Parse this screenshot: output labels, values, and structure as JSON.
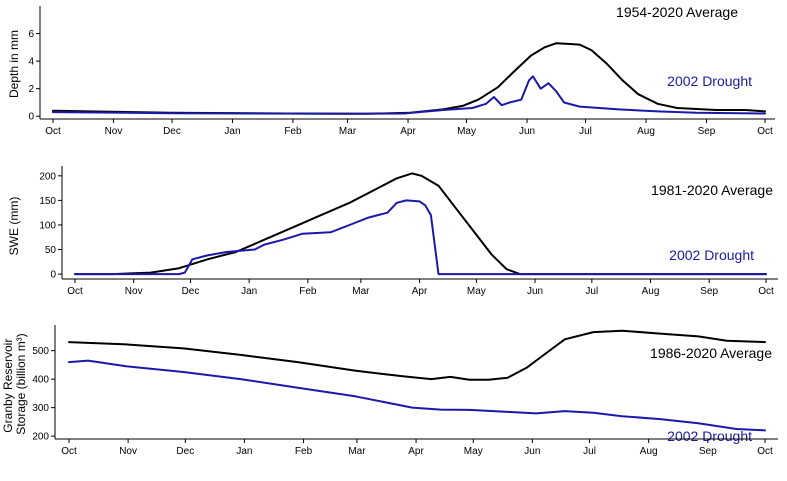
{
  "chart_data": [
    {
      "type": "line",
      "ylabel": "Depth in mm",
      "ylim": [
        -0.2,
        8
      ],
      "yticks": [
        0,
        2,
        4,
        6
      ],
      "xlim": [
        0,
        365
      ],
      "x_ticks": [
        {
          "day": 0,
          "label": "Oct"
        },
        {
          "day": 31,
          "label": "Nov"
        },
        {
          "day": 61,
          "label": "Dec"
        },
        {
          "day": 92,
          "label": "Jan"
        },
        {
          "day": 123,
          "label": "Feb"
        },
        {
          "day": 151,
          "label": "Mar"
        },
        {
          "day": 182,
          "label": "Apr"
        },
        {
          "day": 212,
          "label": "May"
        },
        {
          "day": 243,
          "label": "Jun"
        },
        {
          "day": 273,
          "label": "Jul"
        },
        {
          "day": 304,
          "label": "Aug"
        },
        {
          "day": 335,
          "label": "Sep"
        },
        {
          "day": 365,
          "label": "Oct"
        }
      ],
      "legend_position": "inline annotations",
      "series": [
        {
          "name": "1954-2020 Average",
          "color": "#000000",
          "points": [
            [
              0,
              0.4
            ],
            [
              30,
              0.33
            ],
            [
              60,
              0.25
            ],
            [
              120,
              0.2
            ],
            [
              160,
              0.18
            ],
            [
              183,
              0.25
            ],
            [
              200,
              0.5
            ],
            [
              210,
              0.75
            ],
            [
              218,
              1.2
            ],
            [
              228,
              2.1
            ],
            [
              236,
              3.2
            ],
            [
              245,
              4.4
            ],
            [
              252,
              5.0
            ],
            [
              258,
              5.3
            ],
            [
              264,
              5.25
            ],
            [
              270,
              5.2
            ],
            [
              276,
              4.8
            ],
            [
              284,
              3.8
            ],
            [
              292,
              2.6
            ],
            [
              300,
              1.6
            ],
            [
              310,
              0.9
            ],
            [
              320,
              0.6
            ],
            [
              340,
              0.45
            ],
            [
              355,
              0.45
            ],
            [
              365,
              0.35
            ]
          ]
        },
        {
          "name": "2002 Drought",
          "color": "#1a1aaa",
          "points": [
            [
              0,
              0.3
            ],
            [
              60,
              0.22
            ],
            [
              150,
              0.18
            ],
            [
              180,
              0.2
            ],
            [
              200,
              0.45
            ],
            [
              215,
              0.6
            ],
            [
              222,
              0.9
            ],
            [
              226,
              1.4
            ],
            [
              230,
              0.8
            ],
            [
              234,
              1.0
            ],
            [
              240,
              1.2
            ],
            [
              244,
              2.6
            ],
            [
              246,
              2.9
            ],
            [
              250,
              2.0
            ],
            [
              254,
              2.4
            ],
            [
              258,
              1.8
            ],
            [
              262,
              1.0
            ],
            [
              270,
              0.7
            ],
            [
              290,
              0.5
            ],
            [
              310,
              0.35
            ],
            [
              330,
              0.25
            ],
            [
              365,
              0.2
            ]
          ]
        }
      ],
      "annotations": [
        {
          "text": "1954-2020 Average",
          "color": "#000000"
        },
        {
          "text": "2002 Drought",
          "color": "#1a1aaa"
        }
      ]
    },
    {
      "type": "line",
      "ylabel": "SWE (mm)",
      "ylim": [
        -10,
        220
      ],
      "yticks": [
        0,
        50,
        100,
        150,
        200
      ],
      "xlim": [
        0,
        365
      ],
      "x_ticks": [
        {
          "day": 0,
          "label": "Oct"
        },
        {
          "day": 31,
          "label": "Nov"
        },
        {
          "day": 61,
          "label": "Dec"
        },
        {
          "day": 92,
          "label": "Jan"
        },
        {
          "day": 123,
          "label": "Feb"
        },
        {
          "day": 151,
          "label": "Mar"
        },
        {
          "day": 182,
          "label": "Apr"
        },
        {
          "day": 212,
          "label": "May"
        },
        {
          "day": 243,
          "label": "Jun"
        },
        {
          "day": 273,
          "label": "Jul"
        },
        {
          "day": 304,
          "label": "Aug"
        },
        {
          "day": 335,
          "label": "Sep"
        },
        {
          "day": 365,
          "label": "Oct"
        }
      ],
      "legend_position": "inline annotations",
      "series": [
        {
          "name": "1981-2020 Average",
          "color": "#000000",
          "points": [
            [
              0,
              0
            ],
            [
              20,
              0
            ],
            [
              40,
              3
            ],
            [
              55,
              12
            ],
            [
              70,
              30
            ],
            [
              85,
              45
            ],
            [
              100,
              70
            ],
            [
              115,
              95
            ],
            [
              130,
              120
            ],
            [
              145,
              145
            ],
            [
              160,
              175
            ],
            [
              170,
              195
            ],
            [
              178,
              205
            ],
            [
              183,
              200
            ],
            [
              192,
              180
            ],
            [
              200,
              140
            ],
            [
              210,
              90
            ],
            [
              220,
              40
            ],
            [
              228,
              10
            ],
            [
              235,
              0
            ],
            [
              365,
              0
            ]
          ]
        },
        {
          "name": "2002 Drought",
          "color": "#1a1aaa",
          "points": [
            [
              0,
              0
            ],
            [
              55,
              0
            ],
            [
              58,
              3
            ],
            [
              62,
              30
            ],
            [
              70,
              38
            ],
            [
              80,
              45
            ],
            [
              95,
              50
            ],
            [
              100,
              60
            ],
            [
              110,
              70
            ],
            [
              120,
              82
            ],
            [
              135,
              85
            ],
            [
              145,
              100
            ],
            [
              155,
              115
            ],
            [
              165,
              125
            ],
            [
              170,
              145
            ],
            [
              175,
              150
            ],
            [
              182,
              148
            ],
            [
              185,
              140
            ],
            [
              188,
              120
            ],
            [
              190,
              60
            ],
            [
              192,
              0
            ],
            [
              365,
              0
            ]
          ]
        }
      ],
      "annotations": [
        {
          "text": "1981-2020 Average",
          "color": "#000000"
        },
        {
          "text": "2002 Drought",
          "color": "#1a1aaa"
        }
      ]
    },
    {
      "type": "line",
      "ylabel": "Granby Reservoir Storage (billion m³)",
      "ylim": [
        190,
        590
      ],
      "yticks": [
        200,
        300,
        400,
        500
      ],
      "xlim": [
        0,
        365
      ],
      "x_ticks": [
        {
          "day": 0,
          "label": "Oct"
        },
        {
          "day": 31,
          "label": "Nov"
        },
        {
          "day": 61,
          "label": "Dec"
        },
        {
          "day": 92,
          "label": "Jan"
        },
        {
          "day": 123,
          "label": "Feb"
        },
        {
          "day": 151,
          "label": "Mar"
        },
        {
          "day": 182,
          "label": "Apr"
        },
        {
          "day": 212,
          "label": "May"
        },
        {
          "day": 243,
          "label": "Jun"
        },
        {
          "day": 273,
          "label": "Jul"
        },
        {
          "day": 304,
          "label": "Aug"
        },
        {
          "day": 335,
          "label": "Sep"
        },
        {
          "day": 365,
          "label": "Oct"
        }
      ],
      "legend_position": "inline annotations",
      "series": [
        {
          "name": "1986-2020 Average",
          "color": "#000000",
          "points": [
            [
              0,
              530
            ],
            [
              30,
              522
            ],
            [
              60,
              508
            ],
            [
              90,
              485
            ],
            [
              120,
              460
            ],
            [
              150,
              430
            ],
            [
              175,
              410
            ],
            [
              190,
              400
            ],
            [
              200,
              408
            ],
            [
              210,
              398
            ],
            [
              220,
              398
            ],
            [
              230,
              405
            ],
            [
              240,
              440
            ],
            [
              250,
              490
            ],
            [
              260,
              540
            ],
            [
              275,
              565
            ],
            [
              290,
              570
            ],
            [
              310,
              560
            ],
            [
              330,
              550
            ],
            [
              345,
              535
            ],
            [
              365,
              530
            ]
          ]
        },
        {
          "name": "2002 Drought",
          "color": "#1a1aaa",
          "points": [
            [
              0,
              460
            ],
            [
              10,
              465
            ],
            [
              30,
              445
            ],
            [
              60,
              425
            ],
            [
              90,
              400
            ],
            [
              120,
              370
            ],
            [
              150,
              340
            ],
            [
              180,
              300
            ],
            [
              195,
              293
            ],
            [
              210,
              292
            ],
            [
              230,
              285
            ],
            [
              245,
              280
            ],
            [
              260,
              288
            ],
            [
              275,
              282
            ],
            [
              290,
              270
            ],
            [
              310,
              260
            ],
            [
              330,
              245
            ],
            [
              350,
              225
            ],
            [
              365,
              220
            ]
          ]
        }
      ],
      "annotations": [
        {
          "text": "1986-2020 Average",
          "color": "#000000"
        },
        {
          "text": "2002 Drought",
          "color": "#1a1aaa"
        }
      ]
    }
  ]
}
